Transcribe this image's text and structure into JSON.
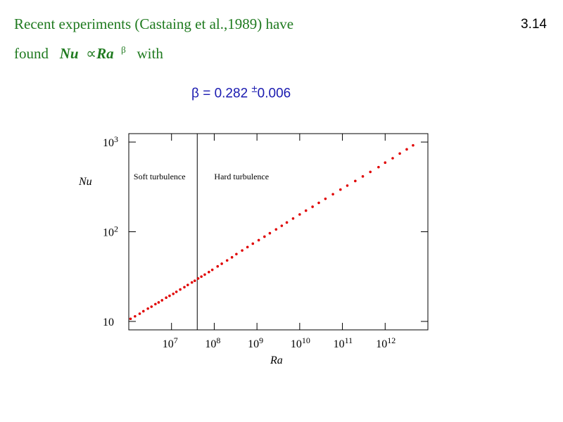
{
  "slide": {
    "number": "3.14",
    "line1": "Recent experiments (Castaing et al.,1989) have",
    "line2": {
      "word_found": "found",
      "nu": "Nu",
      "propto": "∝",
      "ra": "Ra",
      "beta": "β",
      "word_with": "with"
    },
    "beta_equation": {
      "lhs": "β",
      "value": " = 0.282 ",
      "pm": "±",
      "uncertainty": "0.006"
    }
  },
  "colors": {
    "title_green": "#1f7a1f",
    "equation_blue": "#1a1ab0",
    "data_red": "#e00000"
  },
  "chart_data": {
    "type": "scatter",
    "xscale": "log",
    "yscale": "log",
    "xlim": [
      1000000.0,
      10000000000000.0
    ],
    "ylim": [
      10,
      1000
    ],
    "xticks": [
      10000000.0,
      100000000.0,
      1000000000.0,
      10000000000.0,
      100000000000.0,
      1000000000000.0
    ],
    "xtick_labels": [
      {
        "base": "10",
        "exp": "7"
      },
      {
        "base": "10",
        "exp": "8"
      },
      {
        "base": "10",
        "exp": "9"
      },
      {
        "base": "10",
        "exp": "10"
      },
      {
        "base": "10",
        "exp": "11"
      },
      {
        "base": "10",
        "exp": "12"
      }
    ],
    "yticks": [
      10,
      100,
      1000
    ],
    "ytick_labels": [
      {
        "base": "10",
        "exp": ""
      },
      {
        "base": "10",
        "exp": "2"
      },
      {
        "base": "10",
        "exp": "3"
      }
    ],
    "xlabel": "Ra",
    "ylabel": "Nu",
    "transition_ra": 40000000.0,
    "regions": [
      {
        "label": "Soft turbulence",
        "ra_anchor": 1300000.0
      },
      {
        "label": "Hard turbulence",
        "ra_anchor": 100000000.0
      }
    ],
    "series": [
      {
        "x": [
          1100000.0,
          1400000.0,
          1800000.0,
          2200000.0,
          2800000.0,
          3400000.0,
          4200000.0,
          5000000.0,
          6000000.0,
          7500000.0,
          9000000.0,
          11000000.0,
          13000000.0,
          16000000.0,
          20000000.0,
          24000000.0,
          30000000.0,
          35000000.0,
          42000000.0,
          50000000.0,
          60000000.0,
          75000000.0,
          90000000.0,
          120000000.0,
          150000000.0,
          200000000.0,
          260000000.0,
          330000000.0,
          450000000.0,
          600000000.0,
          800000000.0,
          1100000000.0,
          1500000000.0,
          2000000000.0,
          2800000000.0,
          3800000000.0,
          5000000000.0,
          7000000000.0,
          10000000000.0,
          14000000000.0,
          20000000000.0,
          28000000000.0,
          40000000000.0,
          60000000000.0,
          90000000000.0,
          130000000000.0,
          200000000000.0,
          300000000000.0,
          450000000000.0,
          700000000000.0,
          1000000000000.0,
          1500000000000.0,
          2200000000000.0,
          3200000000000.0,
          4500000000000.0
        ],
        "y": [
          10.7,
          11.4,
          12.2,
          13.0,
          13.9,
          14.6,
          15.6,
          16.3,
          17.2,
          18.4,
          19.3,
          20.3,
          21.4,
          22.7,
          24.1,
          25.5,
          27.2,
          28.4,
          30.1,
          31.6,
          33.3,
          35.5,
          37.6,
          41.1,
          44.0,
          47.9,
          51.9,
          56.3,
          61.8,
          67.4,
          73.6,
          80.6,
          88.2,
          96.3,
          106.2,
          116.5,
          126.8,
          140.5,
          156.0,
          172.0,
          190.0,
          210.0,
          233.0,
          262.0,
          295.0,
          327.0,
          368.0,
          414.0,
          465.0,
          525.0,
          590.0,
          660.0,
          745.0,
          830.0,
          920.0
        ]
      }
    ]
  }
}
